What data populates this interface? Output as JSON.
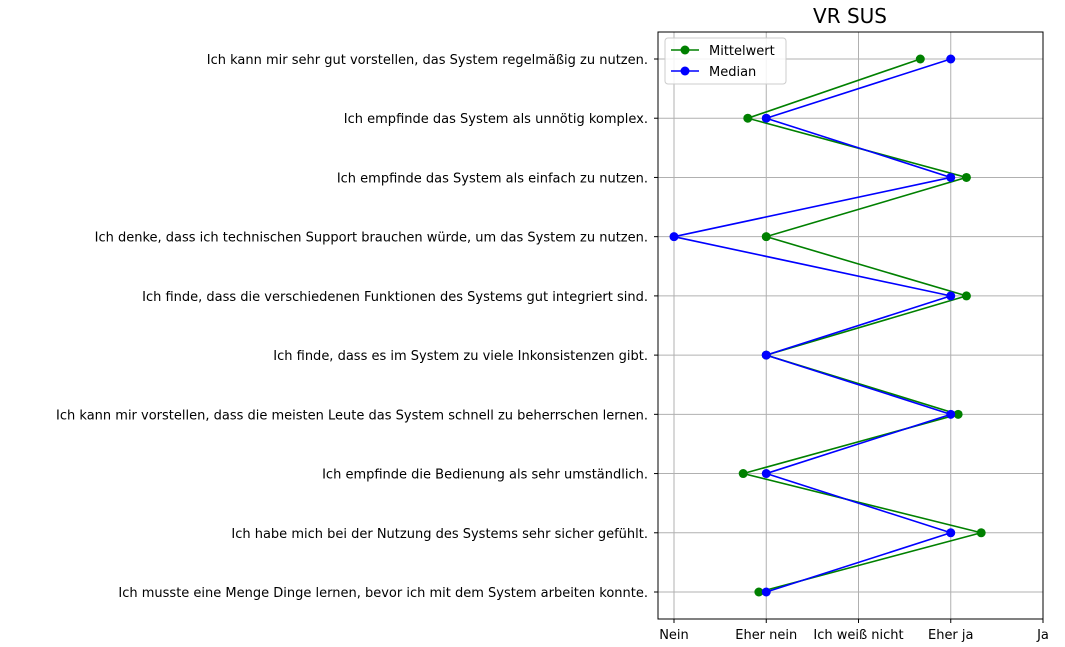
{
  "chart_data": {
    "type": "line",
    "title": "VR SUS",
    "xlabel": "",
    "ylabel": "",
    "x_ticks": [
      "Nein",
      "Eher nein",
      "Ich weiß nicht",
      "Eher ja",
      "Ja"
    ],
    "xlim": [
      0,
      4
    ],
    "categories": [
      "Ich kann mir sehr gut vorstellen, das System regelmäßig zu nutzen.",
      "Ich empfinde das System als unnötig komplex.",
      "Ich empfinde das System als einfach zu nutzen.",
      "Ich denke, dass ich technischen Support brauchen würde, um das System zu nutzen.",
      "Ich finde, dass die verschiedenen Funktionen des Systems gut integriert sind.",
      "Ich finde, dass es im System zu viele Inkonsistenzen gibt.",
      "Ich kann mir vorstellen, dass die meisten Leute das System schnell zu beherrschen lernen.",
      "Ich empfinde die Bedienung als sehr umständlich.",
      "Ich habe mich bei der Nutzung des Systems sehr sicher gefühlt.",
      "Ich musste eine Menge Dinge lernen, bevor ich mit dem System arbeiten konnte."
    ],
    "series": [
      {
        "name": "Mittelwert",
        "color": "#008000",
        "values": [
          2.67,
          0.8,
          3.17,
          1.0,
          3.17,
          1.0,
          3.08,
          0.75,
          3.33,
          0.92
        ]
      },
      {
        "name": "Median",
        "color": "#0000ff",
        "values": [
          3.0,
          1.0,
          3.0,
          0.0,
          3.0,
          1.0,
          3.0,
          1.0,
          3.0,
          1.0
        ]
      }
    ],
    "grid": true,
    "legend": "top-left"
  }
}
